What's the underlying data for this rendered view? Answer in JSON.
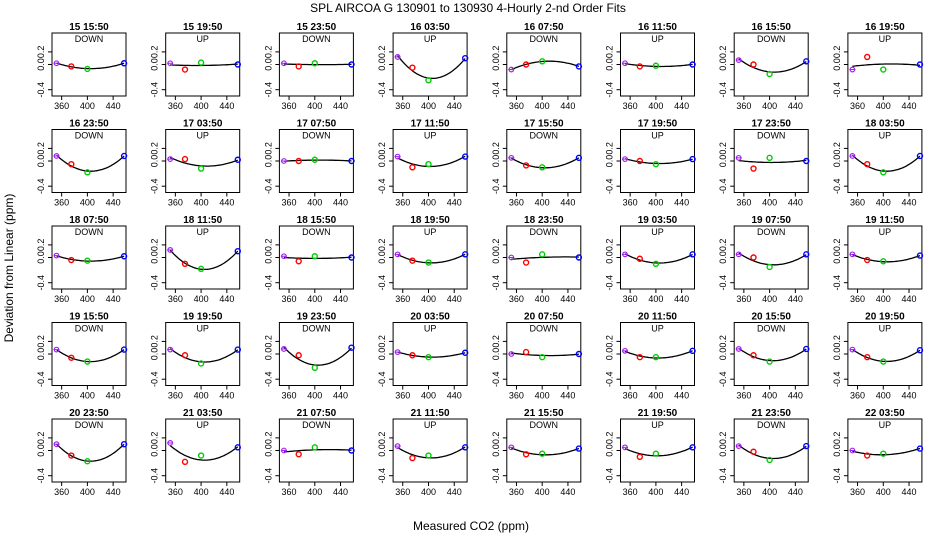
{
  "figure": {
    "title": "SPL   AIRCOA G   130901 to 130930   4-Hourly 2-nd Order Fits",
    "xlabel": "Measured CO2 (ppm)",
    "ylabel": "Deviation from Linear (ppm)"
  },
  "chart_data": {
    "type": "scatter",
    "layout_grid": "5 rows x 8 columns",
    "xlim": [
      345,
      460
    ],
    "ylim": [
      -0.5,
      0.5
    ],
    "xticks": [
      360,
      400,
      440
    ],
    "yticks": [
      -0.4,
      0.0,
      0.2
    ],
    "ytick_labels": [
      "-0.4",
      "0.0",
      "0.2"
    ],
    "point_x": [
      352,
      375,
      400,
      457
    ],
    "point_colors": [
      "#a020f0",
      "#ff0000",
      "#00cc00",
      "#0000ff"
    ],
    "fit_color": "#000000",
    "panels": [
      {
        "title": "15 15:50",
        "mode": "DOWN",
        "y": [
          0.02,
          -0.03,
          -0.07,
          0.02
        ]
      },
      {
        "title": "15 19:50",
        "mode": "UP",
        "y": [
          0.02,
          -0.08,
          0.03,
          0.0
        ]
      },
      {
        "title": "15 23:50",
        "mode": "DOWN",
        "y": [
          0.02,
          -0.03,
          0.02,
          0.0
        ]
      },
      {
        "title": "16 03:50",
        "mode": "UP",
        "y": [
          0.12,
          -0.05,
          -0.25,
          0.1
        ]
      },
      {
        "title": "16 07:50",
        "mode": "DOWN",
        "y": [
          -0.08,
          0.0,
          0.05,
          -0.03
        ]
      },
      {
        "title": "16 11:50",
        "mode": "UP",
        "y": [
          0.02,
          -0.03,
          -0.02,
          0.0
        ]
      },
      {
        "title": "16 15:50",
        "mode": "DOWN",
        "y": [
          0.07,
          0.0,
          -0.15,
          0.05
        ]
      },
      {
        "title": "16 19:50",
        "mode": "UP",
        "y": [
          -0.08,
          0.12,
          -0.08,
          0.0
        ]
      },
      {
        "title": "16 23:50",
        "mode": "DOWN",
        "y": [
          0.08,
          -0.05,
          -0.18,
          0.08
        ]
      },
      {
        "title": "17 03:50",
        "mode": "UP",
        "y": [
          0.03,
          0.03,
          -0.12,
          0.02
        ]
      },
      {
        "title": "17 07:50",
        "mode": "DOWN",
        "y": [
          0.0,
          0.0,
          0.02,
          0.0
        ]
      },
      {
        "title": "17 11:50",
        "mode": "UP",
        "y": [
          0.07,
          -0.1,
          -0.05,
          0.07
        ]
      },
      {
        "title": "17 15:50",
        "mode": "DOWN",
        "y": [
          0.05,
          -0.07,
          -0.1,
          0.05
        ]
      },
      {
        "title": "17 19:50",
        "mode": "UP",
        "y": [
          0.03,
          0.0,
          -0.05,
          0.03
        ]
      },
      {
        "title": "17 23:50",
        "mode": "DOWN",
        "y": [
          0.05,
          -0.12,
          0.05,
          0.0
        ]
      },
      {
        "title": "18 03:50",
        "mode": "UP",
        "y": [
          0.08,
          -0.05,
          -0.18,
          0.08
        ]
      },
      {
        "title": "18 07:50",
        "mode": "DOWN",
        "y": [
          0.03,
          -0.04,
          -0.05,
          0.02
        ]
      },
      {
        "title": "18 11:50",
        "mode": "UP",
        "y": [
          0.12,
          -0.1,
          -0.18,
          0.1
        ]
      },
      {
        "title": "18 15:50",
        "mode": "DOWN",
        "y": [
          0.02,
          -0.06,
          0.02,
          0.0
        ]
      },
      {
        "title": "18 19:50",
        "mode": "UP",
        "y": [
          0.05,
          -0.05,
          -0.08,
          0.05
        ]
      },
      {
        "title": "18 23:50",
        "mode": "DOWN",
        "y": [
          0.0,
          -0.08,
          0.05,
          0.0
        ]
      },
      {
        "title": "19 03:50",
        "mode": "UP",
        "y": [
          0.05,
          -0.02,
          -0.1,
          0.05
        ]
      },
      {
        "title": "19 07:50",
        "mode": "DOWN",
        "y": [
          0.05,
          0.0,
          -0.15,
          0.05
        ]
      },
      {
        "title": "19 11:50",
        "mode": "UP",
        "y": [
          0.05,
          -0.04,
          -0.06,
          0.03
        ]
      },
      {
        "title": "19 15:50",
        "mode": "DOWN",
        "y": [
          0.07,
          -0.06,
          -0.12,
          0.07
        ]
      },
      {
        "title": "19 19:50",
        "mode": "UP",
        "y": [
          0.07,
          -0.02,
          -0.15,
          0.07
        ]
      },
      {
        "title": "19 23:50",
        "mode": "DOWN",
        "y": [
          0.08,
          -0.02,
          -0.22,
          0.1
        ]
      },
      {
        "title": "20 03:50",
        "mode": "UP",
        "y": [
          0.03,
          -0.02,
          -0.05,
          0.02
        ]
      },
      {
        "title": "20 07:50",
        "mode": "DOWN",
        "y": [
          0.0,
          0.03,
          -0.05,
          0.0
        ]
      },
      {
        "title": "20 11:50",
        "mode": "UP",
        "y": [
          0.05,
          -0.05,
          -0.05,
          0.05
        ]
      },
      {
        "title": "20 15:50",
        "mode": "DOWN",
        "y": [
          0.08,
          -0.02,
          -0.12,
          0.08
        ]
      },
      {
        "title": "20 19:50",
        "mode": "UP",
        "y": [
          0.07,
          -0.05,
          -0.12,
          0.06
        ]
      },
      {
        "title": "20 23:50",
        "mode": "DOWN",
        "y": [
          0.1,
          -0.08,
          -0.17,
          0.1
        ]
      },
      {
        "title": "21 03:50",
        "mode": "UP",
        "y": [
          0.12,
          -0.18,
          -0.08,
          0.05
        ]
      },
      {
        "title": "21 07:50",
        "mode": "DOWN",
        "y": [
          0.0,
          -0.06,
          0.05,
          0.0
        ]
      },
      {
        "title": "21 11:50",
        "mode": "UP",
        "y": [
          0.07,
          -0.12,
          -0.08,
          0.05
        ]
      },
      {
        "title": "21 15:50",
        "mode": "DOWN",
        "y": [
          0.05,
          -0.06,
          -0.05,
          0.03
        ]
      },
      {
        "title": "21 19:50",
        "mode": "UP",
        "y": [
          0.05,
          -0.1,
          -0.05,
          0.05
        ]
      },
      {
        "title": "21 23:50",
        "mode": "DOWN",
        "y": [
          0.07,
          -0.02,
          -0.15,
          0.07
        ]
      },
      {
        "title": "22 03:50",
        "mode": "UP",
        "y": [
          0.0,
          -0.08,
          -0.05,
          0.03
        ]
      }
    ]
  }
}
